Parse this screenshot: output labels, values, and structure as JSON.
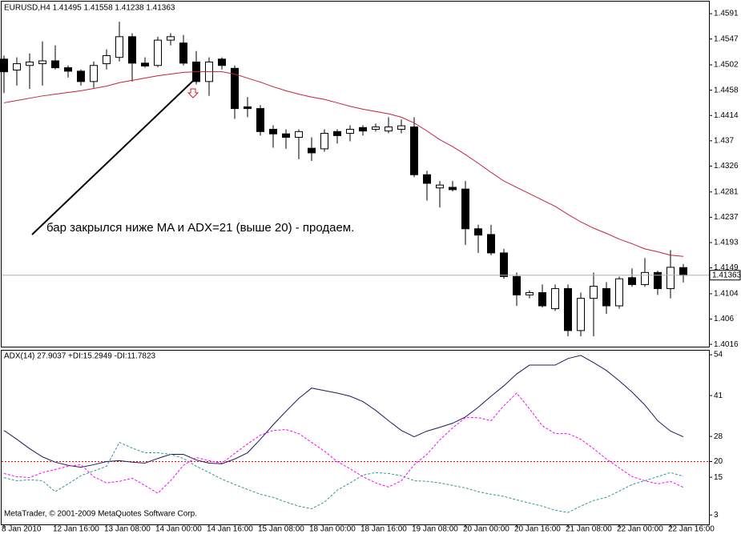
{
  "chart_data": [
    {
      "type": "candlestick",
      "title": "EURUSD,H4  1.41495 1.41558 1.41238 1.41363",
      "categories": [
        "8 Jan 2010",
        null,
        null,
        null,
        "12 Jan 16:00",
        null,
        null,
        null,
        "13 Jan 08:00",
        null,
        null,
        null,
        "14 Jan 00:00",
        null,
        null,
        null,
        "14 Jan 16:00",
        null,
        null,
        null,
        "15 Jan 08:00",
        null,
        null,
        null,
        "18 Jan 00:00",
        null,
        null,
        null,
        "18 Jan 16:00",
        null,
        null,
        null,
        "19 Jan 08:00",
        null,
        null,
        null,
        "20 Jan 00:00",
        null,
        null,
        null,
        "20 Jan 16:00",
        null,
        null,
        null,
        "21 Jan 08:00",
        null,
        null,
        null,
        "22 Jan 00:00",
        null,
        null,
        null,
        "22 Jan 16:00",
        null
      ],
      "open": [
        1.4512,
        1.4493,
        1.4501,
        1.4504,
        1.4509,
        1.4497,
        1.4491,
        1.4473,
        1.4504,
        1.4515,
        1.4551,
        1.4505,
        1.4501,
        1.4545,
        1.454,
        1.4507,
        1.4473,
        1.4512,
        1.4496,
        1.4429,
        1.4426,
        1.439,
        1.4382,
        1.4376,
        1.4357,
        1.4356,
        1.4386,
        1.4383,
        1.4393,
        1.439,
        1.4387,
        1.439,
        1.4394,
        1.4311,
        1.4288,
        1.4289,
        1.4286,
        1.4217,
        1.4207,
        1.4175,
        1.4134,
        1.4102,
        1.4106,
        1.4078,
        1.4113,
        1.404,
        1.4096,
        1.4113,
        1.4083,
        1.4132,
        1.412,
        1.4141,
        1.4113,
        1.41495
      ],
      "high": [
        1.4518,
        1.4515,
        1.4522,
        1.4543,
        1.4536,
        1.4501,
        1.4494,
        1.4508,
        1.4529,
        1.4577,
        1.4557,
        1.4515,
        1.4551,
        1.4557,
        1.4554,
        1.4526,
        1.4515,
        1.4515,
        1.4501,
        1.4446,
        1.4432,
        1.4397,
        1.439,
        1.439,
        1.4376,
        1.439,
        1.439,
        1.4397,
        1.4397,
        1.44,
        1.4411,
        1.4407,
        1.4411,
        1.4318,
        1.43,
        1.43,
        1.43,
        1.4224,
        1.4224,
        1.4182,
        1.4141,
        1.411,
        1.412,
        1.412,
        1.412,
        1.4106,
        1.4141,
        1.4124,
        1.4134,
        1.4148,
        1.4166,
        1.4144,
        1.418,
        1.41558
      ],
      "low": [
        1.4453,
        1.4466,
        1.446,
        1.4466,
        1.4494,
        1.448,
        1.4466,
        1.4462,
        1.4494,
        1.4508,
        1.4473,
        1.4497,
        1.4498,
        1.4536,
        1.4501,
        1.4468,
        1.4448,
        1.4494,
        1.4408,
        1.4411,
        1.4379,
        1.4358,
        1.4356,
        1.4338,
        1.4335,
        1.4351,
        1.4365,
        1.4369,
        1.4379,
        1.4386,
        1.4383,
        1.4383,
        1.4307,
        1.4266,
        1.4254,
        1.4282,
        1.4189,
        1.4175,
        1.4171,
        1.413,
        1.4083,
        1.4096,
        1.408,
        1.4074,
        1.403,
        1.403,
        1.403,
        1.4069,
        1.4078,
        1.4116,
        1.4116,
        1.4102,
        1.4096,
        1.41238
      ],
      "close": [
        1.449,
        1.4504,
        1.4507,
        1.4509,
        1.4497,
        1.4491,
        1.4473,
        1.4501,
        1.4518,
        1.4551,
        1.4505,
        1.45,
        1.4545,
        1.4551,
        1.4505,
        1.4473,
        1.4507,
        1.4501,
        1.4426,
        1.4426,
        1.4386,
        1.4382,
        1.4376,
        1.4386,
        1.4349,
        1.4383,
        1.4379,
        1.439,
        1.4387,
        1.4394,
        1.4394,
        1.4396,
        1.4311,
        1.4296,
        1.4293,
        1.4285,
        1.4217,
        1.4206,
        1.4175,
        1.4134,
        1.4102,
        1.4106,
        1.4083,
        1.4113,
        1.404,
        1.4096,
        1.4117,
        1.4083,
        1.413,
        1.412,
        1.4141,
        1.4113,
        1.415,
        1.41363
      ],
      "up_color": "#ffffff",
      "down_color": "#000000",
      "overlay": {
        "type": "line",
        "color": "#c8203c",
        "values": [
          1.4436,
          1.444,
          1.4444,
          1.4448,
          1.4451,
          1.4454,
          1.4457,
          1.4461,
          1.4465,
          1.4471,
          1.4475,
          1.4479,
          1.4483,
          1.4486,
          1.4489,
          1.449,
          1.449,
          1.449,
          1.4486,
          1.4479,
          1.4472,
          1.4464,
          1.4457,
          1.4451,
          1.4446,
          1.4442,
          1.4436,
          1.443,
          1.4425,
          1.4421,
          1.4417,
          1.4411,
          1.4401,
          1.4387,
          1.4372,
          1.436,
          1.4346,
          1.4331,
          1.4315,
          1.43,
          1.4289,
          1.4278,
          1.4267,
          1.4256,
          1.4242,
          1.4229,
          1.4218,
          1.4209,
          1.4199,
          1.4191,
          1.4182,
          1.4177,
          1.4171,
          1.4169
        ]
      },
      "ylim": [
        1.4012,
        1.4612
      ],
      "yticks": [
        1.4591,
        1.4547,
        1.4502,
        1.4458,
        1.4414,
        1.437,
        1.4326,
        1.4281,
        1.4237,
        1.4193,
        1.4149,
        1.4104,
        1.406,
        1.4016
      ],
      "current_price": 1.41363,
      "annotation": "бар закрылся ниже MA и ADX=21 (выше 20) - продаем.",
      "grid": false
    },
    {
      "type": "line",
      "title": "ADX(14) 27.9037 +DI:15.2949 -DI:11.7823",
      "series": [
        {
          "color": "#1c1c60",
          "dashed": false,
          "values": [
            29.9,
            27.1,
            24.1,
            21.5,
            19.8,
            18.8,
            18.2,
            19.0,
            20.0,
            20.3,
            19.8,
            19.5,
            21.0,
            22.3,
            22.3,
            20.5,
            19.5,
            19.3,
            20.8,
            22.8,
            27.1,
            31.7,
            36.0,
            40.1,
            43.4,
            42.6,
            41.8,
            40.8,
            39.1,
            36.3,
            33.0,
            29.9,
            27.9,
            29.7,
            30.9,
            32.2,
            34.2,
            37.3,
            40.8,
            44.1,
            47.9,
            50.7,
            50.7,
            50.7,
            52.8,
            53.8,
            51.5,
            49.0,
            45.7,
            42.1,
            38.0,
            33.0,
            29.7,
            27.9
          ]
        },
        {
          "color": "#2e9696",
          "dashed": true,
          "values": [
            14.9,
            13.9,
            14.2,
            13.9,
            10.4,
            12.9,
            15.5,
            17.0,
            18.5,
            26.1,
            24.3,
            22.8,
            22.8,
            22.3,
            21.0,
            18.5,
            16.5,
            14.4,
            12.7,
            11.1,
            9.6,
            8.6,
            7.1,
            5.8,
            5.0,
            7.1,
            10.9,
            13.2,
            15.7,
            16.5,
            16.2,
            15.5,
            13.9,
            13.7,
            13.2,
            12.4,
            11.6,
            10.4,
            9.6,
            8.9,
            7.8,
            6.8,
            5.8,
            4.5,
            3.8,
            5.8,
            7.6,
            8.6,
            10.6,
            12.7,
            13.9,
            15.2,
            16.5,
            15.3
          ]
        },
        {
          "color": "#ff00ff",
          "dashed": true,
          "values": [
            16.2,
            15.2,
            14.9,
            16.5,
            17.5,
            18.5,
            19.0,
            15.2,
            13.2,
            13.7,
            14.7,
            12.4,
            9.9,
            13.9,
            18.8,
            21.3,
            20.3,
            19.5,
            22.6,
            25.6,
            28.4,
            29.9,
            30.2,
            28.9,
            26.1,
            23.3,
            20.0,
            17.7,
            15.2,
            13.2,
            11.9,
            13.9,
            19.0,
            22.3,
            26.9,
            30.7,
            34.0,
            34.0,
            33.0,
            37.8,
            41.8,
            36.8,
            31.4,
            28.9,
            28.9,
            27.1,
            24.1,
            20.8,
            18.0,
            15.2,
            13.9,
            12.9,
            13.7,
            11.8
          ]
        }
      ],
      "ylim": [
        0,
        55.3
      ],
      "yticks": [
        54,
        41,
        28,
        20,
        15,
        3
      ],
      "level": 20,
      "level_color": "#ff0000",
      "grid": false
    }
  ],
  "footer": "MetaTrader, © 2001-2009 MetaQuotes Software Corp."
}
